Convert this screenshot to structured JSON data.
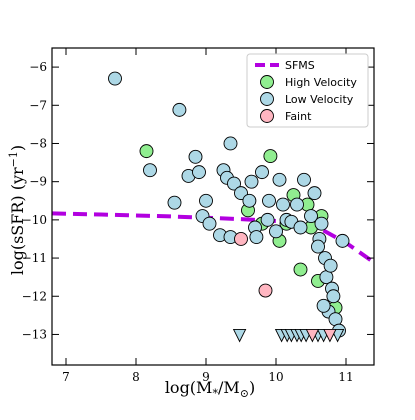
{
  "chart_data": {
    "type": "scatter",
    "xlabel_main": "log(M",
    "xlabel_sub": "*",
    "xlabel_mid": "/M",
    "xlabel_sub2": "⊙",
    "xlabel_end": ")",
    "ylabel_main": "log(sSFR) (yr",
    "ylabel_sup": "−1",
    "ylabel_end": ")",
    "xlim": [
      6.8,
      11.4
    ],
    "ylim": [
      -13.8,
      -5.5
    ],
    "x_ticks": [
      7,
      8,
      9,
      10,
      11
    ],
    "x_tick_labels": [
      "7",
      "8",
      "9",
      "10",
      "11"
    ],
    "y_ticks": [
      -6,
      -7,
      -8,
      -9,
      -10,
      -11,
      -12,
      -13
    ],
    "y_tick_labels": [
      "−6",
      "−7",
      "−8",
      "−9",
      "−10",
      "−11",
      "−12",
      "−13"
    ],
    "legend_position": "top-right",
    "sfms": {
      "name": "SFMS",
      "color": "#b200e0",
      "x": [
        6.8,
        7.5,
        8.5,
        9.5,
        10.2,
        10.6,
        11.0,
        11.35
      ],
      "y": [
        -9.83,
        -9.86,
        -9.91,
        -9.98,
        -10.05,
        -10.2,
        -10.6,
        -11.05
      ]
    },
    "series": [
      {
        "name": "High Velocity",
        "color": "#90ee90",
        "points": [
          [
            8.15,
            -8.2
          ],
          [
            9.8,
            -10.1
          ],
          [
            9.92,
            -8.33
          ],
          [
            9.6,
            -9.75
          ],
          [
            10.15,
            -10.1
          ],
          [
            10.05,
            -10.55
          ],
          [
            10.25,
            -9.35
          ],
          [
            10.35,
            -11.3
          ],
          [
            10.6,
            -11.6
          ],
          [
            10.65,
            -9.9
          ],
          [
            10.45,
            -9.6
          ],
          [
            10.85,
            -12.3
          ],
          [
            10.5,
            -10.2
          ]
        ]
      },
      {
        "name": "Low Velocity",
        "color": "#add8e6",
        "points": [
          [
            7.7,
            -6.3
          ],
          [
            8.62,
            -7.12
          ],
          [
            8.2,
            -8.7
          ],
          [
            8.55,
            -9.55
          ],
          [
            8.75,
            -8.85
          ],
          [
            8.85,
            -8.35
          ],
          [
            8.9,
            -8.75
          ],
          [
            9.0,
            -9.5
          ],
          [
            8.95,
            -9.9
          ],
          [
            9.05,
            -10.1
          ],
          [
            9.2,
            -10.4
          ],
          [
            9.25,
            -8.7
          ],
          [
            9.35,
            -8.0
          ],
          [
            9.3,
            -8.9
          ],
          [
            9.4,
            -9.05
          ],
          [
            9.35,
            -10.45
          ],
          [
            9.5,
            -9.3
          ],
          [
            9.62,
            -9.5
          ],
          [
            9.65,
            -9.0
          ],
          [
            9.7,
            -10.2
          ],
          [
            9.72,
            -10.45
          ],
          [
            9.8,
            -8.75
          ],
          [
            9.9,
            -9.5
          ],
          [
            9.88,
            -10.0
          ],
          [
            10.0,
            -10.3
          ],
          [
            10.05,
            -8.95
          ],
          [
            10.1,
            -9.6
          ],
          [
            10.15,
            -10.0
          ],
          [
            10.22,
            -10.05
          ],
          [
            10.3,
            -9.6
          ],
          [
            10.35,
            -10.2
          ],
          [
            10.4,
            -8.95
          ],
          [
            10.5,
            -9.9
          ],
          [
            10.55,
            -9.3
          ],
          [
            10.62,
            -10.5
          ],
          [
            10.7,
            -11.0
          ],
          [
            10.65,
            -10.1
          ],
          [
            10.72,
            -11.5
          ],
          [
            10.8,
            -11.8
          ],
          [
            10.82,
            -12.0
          ],
          [
            10.75,
            -12.4
          ],
          [
            10.85,
            -12.6
          ],
          [
            10.9,
            -12.9
          ],
          [
            10.95,
            -10.55
          ],
          [
            10.68,
            -12.25
          ],
          [
            10.78,
            -11.2
          ],
          [
            10.6,
            -10.7
          ]
        ]
      },
      {
        "name": "Faint",
        "color": "#ffb6c1",
        "points": [
          [
            9.5,
            -10.5
          ],
          [
            9.85,
            -11.85
          ]
        ]
      }
    ],
    "upper_limits": [
      {
        "color": "#add8e6",
        "x": [
          9.48,
          10.08,
          10.16,
          10.22,
          10.3,
          10.36,
          10.43,
          10.6,
          10.68,
          10.88
        ]
      },
      {
        "color": "#ffb6c1",
        "x": [
          10.52,
          10.77
        ]
      }
    ],
    "upper_limit_y": -13.0
  }
}
